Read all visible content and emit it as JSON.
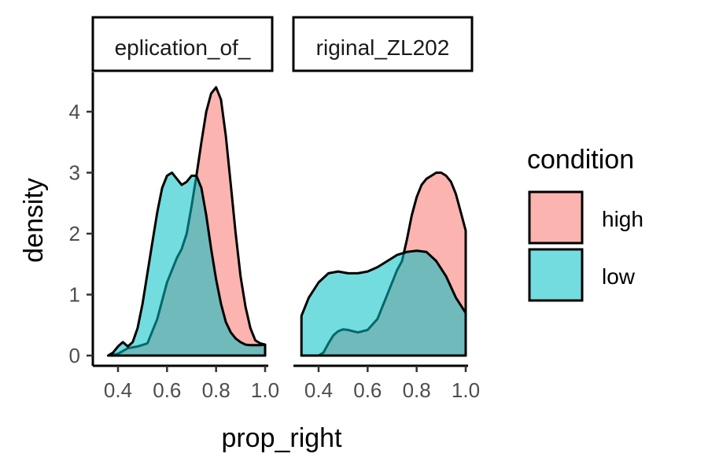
{
  "chart_data": {
    "type": "area",
    "xlabel": "prop_right",
    "ylabel": "density",
    "x_ticks": [
      0.4,
      0.6,
      0.8,
      1.0
    ],
    "x_tick_labels": [
      "0.4",
      "0.6",
      "0.8",
      "1.0"
    ],
    "y_ticks": [
      0,
      1,
      2,
      3,
      4
    ],
    "y_tick_labels": [
      "0",
      "1",
      "2",
      "3",
      "4"
    ],
    "ylim": [
      0,
      4.5
    ],
    "grid": false,
    "legend": {
      "title": "condition",
      "position": "right",
      "entries": [
        {
          "label": "high",
          "color": "#F8766D"
        },
        {
          "label": "low",
          "color": "#00BFC4"
        }
      ]
    },
    "panels": [
      {
        "strip_label": "eplication_of_",
        "xlim": [
          0.33,
          1.0
        ],
        "series": [
          {
            "name": "high",
            "color": "#F8766D",
            "x": [
              0.36,
              0.4,
              0.44,
              0.48,
              0.52,
              0.56,
              0.6,
              0.64,
              0.66,
              0.68,
              0.7,
              0.72,
              0.74,
              0.76,
              0.78,
              0.8,
              0.82,
              0.84,
              0.86,
              0.88,
              0.9,
              0.92,
              0.94,
              0.96,
              0.98,
              1.0
            ],
            "y": [
              0.0,
              0.03,
              0.12,
              0.15,
              0.2,
              0.6,
              1.2,
              1.6,
              1.75,
              2.0,
              2.45,
              2.95,
              3.5,
              4.0,
              4.3,
              4.4,
              4.2,
              3.6,
              2.8,
              2.0,
              1.3,
              0.8,
              0.45,
              0.25,
              0.2,
              0.18
            ]
          },
          {
            "name": "low",
            "color": "#00BFC4",
            "x": [
              0.36,
              0.38,
              0.4,
              0.42,
              0.44,
              0.46,
              0.48,
              0.5,
              0.52,
              0.54,
              0.56,
              0.58,
              0.6,
              0.62,
              0.64,
              0.66,
              0.68,
              0.7,
              0.72,
              0.74,
              0.76,
              0.78,
              0.8,
              0.82,
              0.84,
              0.86,
              0.88,
              0.9,
              0.92,
              0.94,
              0.96,
              0.98,
              1.0
            ],
            "y": [
              0.0,
              0.05,
              0.15,
              0.22,
              0.15,
              0.22,
              0.45,
              0.85,
              1.35,
              1.85,
              2.35,
              2.75,
              2.95,
              3.0,
              2.9,
              2.8,
              2.85,
              2.95,
              2.95,
              2.75,
              2.3,
              1.75,
              1.25,
              0.85,
              0.55,
              0.38,
              0.28,
              0.22,
              0.18,
              0.17,
              0.17,
              0.17,
              0.18
            ]
          }
        ]
      },
      {
        "strip_label": "riginal_ZL202",
        "xlim": [
          0.33,
          1.0
        ],
        "series": [
          {
            "name": "high",
            "color": "#F8766D",
            "x": [
              0.33,
              0.36,
              0.4,
              0.42,
              0.44,
              0.46,
              0.48,
              0.5,
              0.52,
              0.56,
              0.6,
              0.64,
              0.68,
              0.72,
              0.74,
              0.76,
              0.78,
              0.8,
              0.82,
              0.84,
              0.86,
              0.88,
              0.9,
              0.92,
              0.94,
              0.96,
              0.98,
              1.0
            ],
            "y": [
              0.0,
              0.0,
              0.0,
              0.05,
              0.2,
              0.33,
              0.4,
              0.43,
              0.42,
              0.38,
              0.42,
              0.6,
              1.0,
              1.4,
              1.55,
              1.9,
              2.3,
              2.6,
              2.8,
              2.9,
              2.95,
              3.0,
              3.0,
              2.95,
              2.85,
              2.65,
              2.35,
              2.05
            ]
          },
          {
            "name": "low",
            "color": "#00BFC4",
            "x": [
              0.33,
              0.36,
              0.4,
              0.44,
              0.48,
              0.52,
              0.56,
              0.6,
              0.64,
              0.68,
              0.72,
              0.76,
              0.8,
              0.84,
              0.88,
              0.92,
              0.96,
              1.0
            ],
            "y": [
              0.65,
              0.95,
              1.2,
              1.35,
              1.38,
              1.35,
              1.35,
              1.38,
              1.45,
              1.55,
              1.65,
              1.7,
              1.72,
              1.7,
              1.55,
              1.3,
              0.95,
              0.7
            ]
          }
        ]
      }
    ]
  }
}
